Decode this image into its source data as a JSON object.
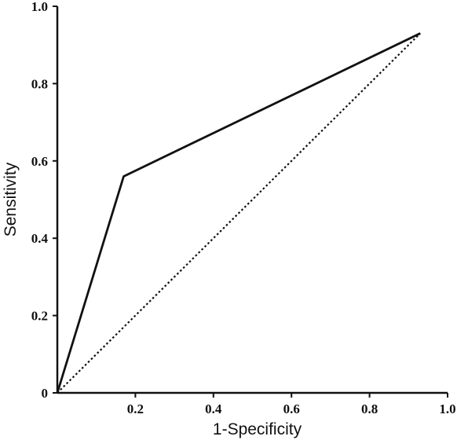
{
  "chart_data": {
    "type": "line",
    "title": "",
    "xlabel": "1-Specificity",
    "ylabel": "Sensitivity",
    "xlim": [
      0,
      1.0
    ],
    "ylim": [
      0,
      1.0
    ],
    "x_ticks": [
      0.2,
      0.4,
      0.6,
      0.8,
      1.0
    ],
    "x_tick_labels": [
      "0.2",
      "0.4",
      "0.6",
      "0.8",
      "1.0"
    ],
    "y_ticks": [
      0,
      0.2,
      0.4,
      0.6,
      0.8,
      1.0
    ],
    "y_tick_labels": [
      "0",
      "0.2",
      "0.4",
      "0.6",
      "0.8",
      "1.0"
    ],
    "grid": false,
    "legend": "none",
    "series": [
      {
        "style": "solid",
        "color": "#111111",
        "x": [
          0,
          0.17,
          0.93
        ],
        "y": [
          0,
          0.56,
          0.93
        ]
      },
      {
        "style": "dotted",
        "color": "#111111",
        "x": [
          0,
          0.93
        ],
        "y": [
          0,
          0.93
        ]
      }
    ]
  }
}
